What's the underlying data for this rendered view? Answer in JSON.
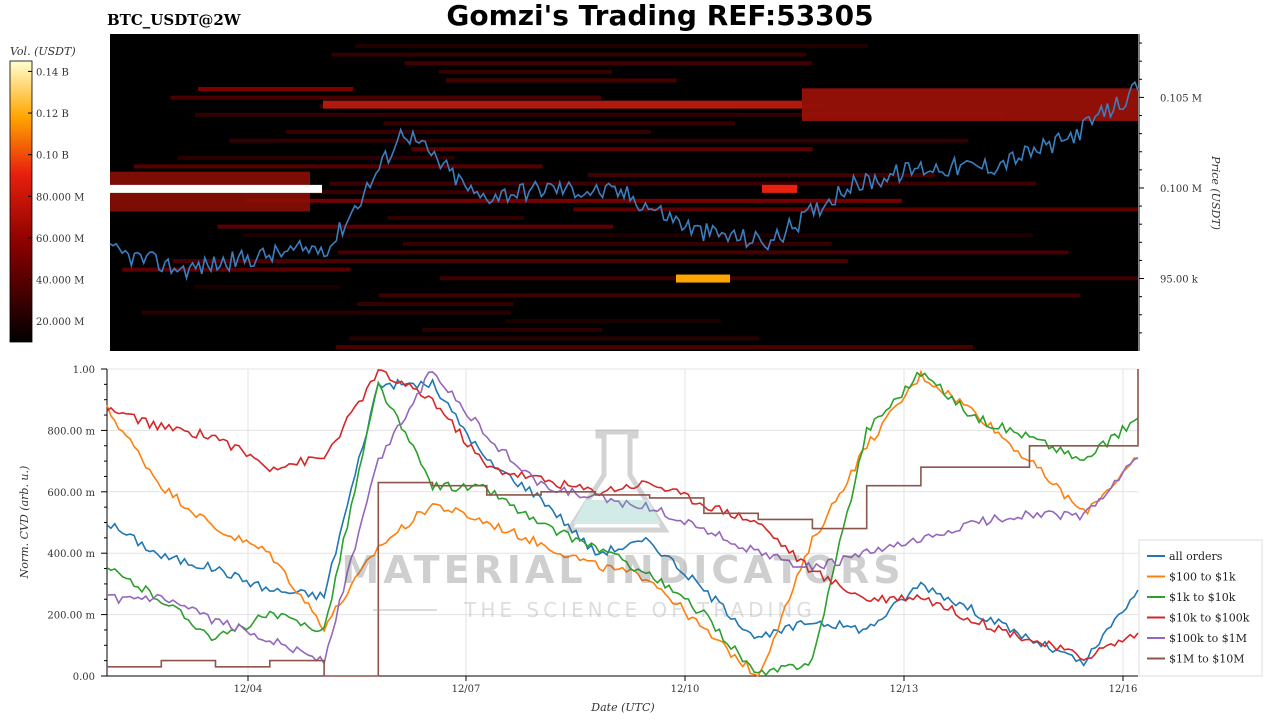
{
  "header": {
    "symbol": "BTC_USDT@2W",
    "title": "Gomzi's Trading REF:53305"
  },
  "colors": {
    "price_line": "#3a7fc0",
    "all_orders": "#1f77b4",
    "usd100_1k": "#ff7f0e",
    "usd1k_10k": "#2ca02c",
    "usd10k_100k": "#d62728",
    "usd100k_1m": "#9467bd",
    "usd1m_10m": "#8c564b"
  },
  "watermark": {
    "brand": "MATERIAL INDICATORS",
    "tagline": "THE SCIENCE OF TRADING"
  },
  "chart_data": [
    {
      "type": "heatmap",
      "title": "Gomzi's Trading REF:53305",
      "colorbar_label": "Vol. (USDT)",
      "colorbar_ticks": [
        "20.000 M",
        "40.000 M",
        "60.000 M",
        "80.000 M",
        "0.10 B",
        "0.12 B",
        "0.14 B"
      ],
      "colorbar_values": [
        20000000,
        40000000,
        60000000,
        80000000,
        100000000,
        120000000,
        140000000
      ],
      "colorbar_range": [
        10000000,
        145000000
      ],
      "ylabel": "Price (USDT)",
      "y_ticks": [
        "95.00 k",
        "0.100 M",
        "0.105 M"
      ],
      "y_tick_values": [
        95000,
        100000,
        105000
      ],
      "ylim": [
        91000,
        108500
      ],
      "x_range": [
        "2024-12-02",
        "2024-12-16"
      ],
      "price_series": {
        "x": [
          "12/02",
          "12/03",
          "12/04",
          "12/05",
          "12/06",
          "12/07",
          "12/08",
          "12/09",
          "12/10",
          "12/11",
          "12/12",
          "12/13",
          "12/14",
          "12/15",
          "12/16"
        ],
        "y": [
          96500,
          95500,
          96200,
          96800,
          103200,
          99500,
          100000,
          99700,
          97600,
          97000,
          100000,
          101100,
          101200,
          102600,
          105400
        ]
      },
      "order_walls": [
        {
          "price": 99950,
          "from": "12/02",
          "to": "12/05",
          "volume": 140000000
        },
        {
          "price": 95000,
          "from": "12/09",
          "to": "12/10",
          "volume": 120000000
        },
        {
          "price": 99950,
          "from": "12/10",
          "to": "12/11",
          "volume": 85000000
        },
        {
          "price": 104600,
          "from": "12/05",
          "to": "12/10",
          "volume": 20000000
        }
      ]
    },
    {
      "type": "line",
      "xlabel": "Date (UTC)",
      "ylabel": "Norm. CVD (arb. u.)",
      "x_ticks": [
        "12/04",
        "12/07",
        "12/10",
        "12/13",
        "12/16"
      ],
      "y_ticks": [
        "0.00",
        "200.00 m",
        "400.00 m",
        "600.00 m",
        "800.00 m",
        "1.00"
      ],
      "ylim": [
        0,
        1
      ],
      "xlim": [
        "2024-12-02",
        "2024-12-16"
      ],
      "x": [
        "12/02",
        "12/03",
        "12/04",
        "12/04 12h",
        "12/05",
        "12/05 12h",
        "12/06",
        "12/07",
        "12/08",
        "12/09",
        "12/09 12h",
        "12/10",
        "12/10 12h",
        "12/11",
        "12/11 12h",
        "12/12",
        "12/13",
        "12/14",
        "12/15",
        "12/16"
      ],
      "legend": "right",
      "series": [
        {
          "name": "all orders",
          "values": [
            0.5,
            0.39,
            0.35,
            0.28,
            0.26,
            0.95,
            0.95,
            0.7,
            0.58,
            0.4,
            0.44,
            0.28,
            0.12,
            0.18,
            0.15,
            0.3,
            0.21,
            0.12,
            0.04,
            0.28
          ]
        },
        {
          "name": "$100 to $1k",
          "values": [
            0.87,
            0.62,
            0.48,
            0.4,
            0.16,
            0.42,
            0.56,
            0.5,
            0.43,
            0.36,
            0.32,
            0.15,
            0.0,
            0.44,
            0.75,
            0.98,
            0.86,
            0.7,
            0.53,
            0.71
          ]
        },
        {
          "name": "$1k to $10k",
          "values": [
            0.35,
            0.25,
            0.12,
            0.2,
            0.15,
            0.95,
            0.62,
            0.61,
            0.49,
            0.42,
            0.33,
            0.2,
            0.0,
            0.05,
            0.8,
            0.99,
            0.84,
            0.78,
            0.7,
            0.84
          ]
        },
        {
          "name": "$10k to $100k",
          "values": [
            0.87,
            0.81,
            0.78,
            0.68,
            0.71,
            0.99,
            0.9,
            0.68,
            0.64,
            0.6,
            0.63,
            0.56,
            0.5,
            0.34,
            0.25,
            0.26,
            0.18,
            0.12,
            0.06,
            0.14
          ]
        },
        {
          "name": "$100k to $1M",
          "values": [
            0.25,
            0.25,
            0.18,
            0.12,
            0.05,
            0.7,
            1.0,
            0.78,
            0.62,
            0.58,
            0.55,
            0.48,
            0.4,
            0.35,
            0.4,
            0.44,
            0.5,
            0.53,
            0.52,
            0.71
          ]
        },
        {
          "name": "$1M to $10M",
          "values": [
            0.03,
            0.05,
            0.03,
            0.05,
            0.0,
            0.63,
            0.62,
            0.59,
            0.6,
            0.59,
            0.58,
            0.53,
            0.51,
            0.48,
            0.62,
            0.68,
            0.68,
            0.75,
            0.75,
            1.0
          ]
        }
      ]
    }
  ]
}
